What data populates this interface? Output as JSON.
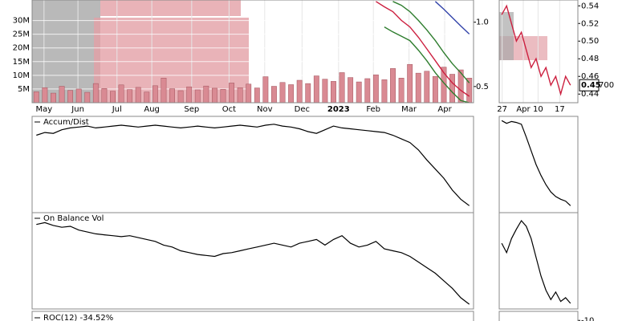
{
  "chart_data": [
    {
      "type": "bar",
      "xlim": [
        0,
        52
      ],
      "xticks": [
        {
          "value": 1.4,
          "label": "May"
        },
        {
          "value": 5.4,
          "label": "Jun"
        },
        {
          "value": 10,
          "label": "Jul"
        },
        {
          "value": 14.1,
          "label": "Aug"
        },
        {
          "value": 18.8,
          "label": "Sep"
        },
        {
          "value": 23.2,
          "label": "Oct"
        },
        {
          "value": 27.4,
          "label": "Nov"
        },
        {
          "value": 31.8,
          "label": "Dec"
        },
        {
          "value": 36.1,
          "label": "2023"
        },
        {
          "value": 40.2,
          "label": "Feb"
        },
        {
          "value": 44.4,
          "label": "Mar"
        },
        {
          "value": 48.6,
          "label": "Apr"
        }
      ],
      "ylim": [
        0,
        37500000
      ],
      "yticks": [
        {
          "value": 5000000,
          "label": "5M"
        },
        {
          "value": 10000000,
          "label": "10M"
        },
        {
          "value": 15000000,
          "label": "15M"
        },
        {
          "value": 20000000,
          "label": "20M"
        },
        {
          "value": 25000000,
          "label": "25M"
        },
        {
          "value": 30000000,
          "label": "30M"
        }
      ],
      "y2lim": [
        0.42,
        1.27
      ],
      "y2log": true,
      "y2ticks": [
        0.5,
        {
          "value": 1,
          "label": "1.0"
        }
      ],
      "color": "#d98a93",
      "values": [
        4000000,
        5500000,
        3500000,
        6000000,
        4500000,
        5000000,
        3800000,
        7000000,
        5200000,
        4200000,
        6500000,
        4800000,
        5600000,
        3900000,
        6200000,
        9000000,
        5100000,
        4400000,
        5800000,
        4700000,
        6100000,
        5300000,
        4900000,
        7200000,
        5500000,
        6800000,
        5400000,
        9500000,
        6000000,
        7400000,
        6600000,
        8200000,
        7000000,
        9800000,
        8600000,
        7800000,
        11000000,
        9200000,
        7600000,
        8800000,
        10200000,
        8400000,
        12500000,
        9000000,
        14000000,
        10800000,
        11500000,
        9600000,
        13000000,
        10400000,
        12000000,
        9000000
      ],
      "series": [
        {
          "color": "#cc1f3f",
          "axis": "y2",
          "values": [
            null,
            null,
            null,
            null,
            null,
            null,
            null,
            null,
            null,
            null,
            null,
            null,
            null,
            null,
            null,
            null,
            null,
            null,
            null,
            null,
            null,
            null,
            null,
            null,
            null,
            null,
            null,
            null,
            null,
            null,
            null,
            null,
            null,
            null,
            null,
            null,
            null,
            null,
            null,
            null,
            1.25,
            1.18,
            1.12,
            1.02,
            0.95,
            0.85,
            0.75,
            0.66,
            0.58,
            0.52,
            0.48,
            0.45
          ]
        },
        {
          "color": "#2e7d2e",
          "axis": "y2",
          "values": [
            null,
            null,
            null,
            null,
            null,
            null,
            null,
            null,
            null,
            null,
            null,
            null,
            null,
            null,
            null,
            null,
            null,
            null,
            null,
            null,
            null,
            null,
            null,
            null,
            null,
            null,
            null,
            null,
            null,
            null,
            null,
            null,
            null,
            null,
            null,
            null,
            null,
            null,
            null,
            null,
            null,
            null,
            1.25,
            1.2,
            1.12,
            1.02,
            0.92,
            0.82,
            0.72,
            0.64,
            0.58,
            0.52
          ]
        },
        {
          "color": "#2e7d2e",
          "axis": "y2",
          "values": [
            null,
            null,
            null,
            null,
            null,
            null,
            null,
            null,
            null,
            null,
            null,
            null,
            null,
            null,
            null,
            null,
            null,
            null,
            null,
            null,
            null,
            null,
            null,
            null,
            null,
            null,
            null,
            null,
            null,
            null,
            null,
            null,
            null,
            null,
            null,
            null,
            null,
            null,
            null,
            null,
            null,
            0.95,
            0.9,
            0.86,
            0.82,
            0.74,
            0.66,
            0.58,
            0.52,
            0.47,
            0.43,
            0.42
          ]
        },
        {
          "color": "#3344aa",
          "axis": "y2",
          "values": [
            null,
            null,
            null,
            null,
            null,
            null,
            null,
            null,
            null,
            null,
            null,
            null,
            null,
            null,
            null,
            null,
            null,
            null,
            null,
            null,
            null,
            null,
            null,
            null,
            null,
            null,
            null,
            null,
            null,
            null,
            null,
            null,
            null,
            null,
            null,
            null,
            null,
            null,
            null,
            null,
            null,
            null,
            null,
            null,
            null,
            null,
            null,
            1.25,
            1.15,
            1.05,
            0.96,
            0.88
          ]
        }
      ]
    },
    {
      "type": "line",
      "title": "Accum/Dist",
      "xlim": [
        0,
        52
      ],
      "ylim": [
        0,
        100
      ],
      "series": [
        {
          "color": "#000000",
          "values": [
            82,
            85,
            84,
            88,
            90,
            91,
            92,
            90,
            91,
            92,
            93,
            92,
            91,
            92,
            93,
            92,
            91,
            90,
            91,
            92,
            91,
            90,
            91,
            92,
            93,
            92,
            91,
            93,
            94,
            92,
            91,
            89,
            86,
            84,
            88,
            92,
            90,
            89,
            88,
            87,
            86,
            85,
            82,
            78,
            74,
            66,
            55,
            45,
            35,
            22,
            12,
            5
          ]
        }
      ]
    },
    {
      "type": "line",
      "title": "On Balance Vol",
      "xlim": [
        0,
        52
      ],
      "ylim": [
        0,
        100
      ],
      "series": [
        {
          "color": "#000000",
          "values": [
            90,
            92,
            89,
            87,
            88,
            84,
            82,
            80,
            79,
            78,
            77,
            78,
            76,
            74,
            72,
            68,
            66,
            62,
            60,
            58,
            57,
            56,
            59,
            60,
            62,
            64,
            66,
            68,
            70,
            68,
            66,
            70,
            72,
            74,
            68,
            74,
            78,
            70,
            66,
            68,
            72,
            64,
            62,
            60,
            56,
            50,
            44,
            38,
            30,
            22,
            12,
            5
          ]
        }
      ]
    },
    {
      "type": "line",
      "title": "ROC(12) -34.52%"
    },
    {
      "type": "line",
      "xlim": [
        0,
        16
      ],
      "xticks": [
        {
          "value": 0.6,
          "label": "27"
        },
        {
          "value": 4.9,
          "label": "Apr"
        },
        {
          "value": 7.9,
          "label": "10"
        },
        {
          "value": 12.3,
          "label": "17"
        }
      ],
      "ylim": [
        0.4302,
        0.5466
      ],
      "yticks": [
        0.44,
        0.46,
        0.48,
        {
          "value": 0.5,
          "label": "0.50"
        },
        0.52,
        0.54
      ],
      "last_value": 0.45,
      "annotation": "700",
      "series": [
        {
          "color": "#cc1f3f",
          "values": [
            0.53,
            0.54,
            0.52,
            0.5,
            0.51,
            0.49,
            0.47,
            0.48,
            0.46,
            0.47,
            0.45,
            0.46,
            0.44,
            0.46,
            0.45
          ]
        }
      ]
    },
    {
      "type": "line",
      "xlim": [
        0,
        16
      ],
      "ylim": [
        0,
        100
      ],
      "series": [
        {
          "color": "#000000",
          "values": [
            98,
            95,
            97,
            96,
            94,
            80,
            65,
            50,
            38,
            28,
            20,
            15,
            12,
            10,
            5
          ]
        }
      ]
    },
    {
      "type": "line",
      "xlim": [
        0,
        16
      ],
      "ylim": [
        0,
        100
      ],
      "series": [
        {
          "color": "#000000",
          "values": [
            70,
            60,
            75,
            85,
            94,
            88,
            75,
            55,
            35,
            20,
            10,
            18,
            8,
            12,
            6
          ]
        }
      ]
    },
    {
      "type": "line",
      "ylim": [
        -12,
        20
      ],
      "yticks": [
        -10
      ]
    }
  ]
}
